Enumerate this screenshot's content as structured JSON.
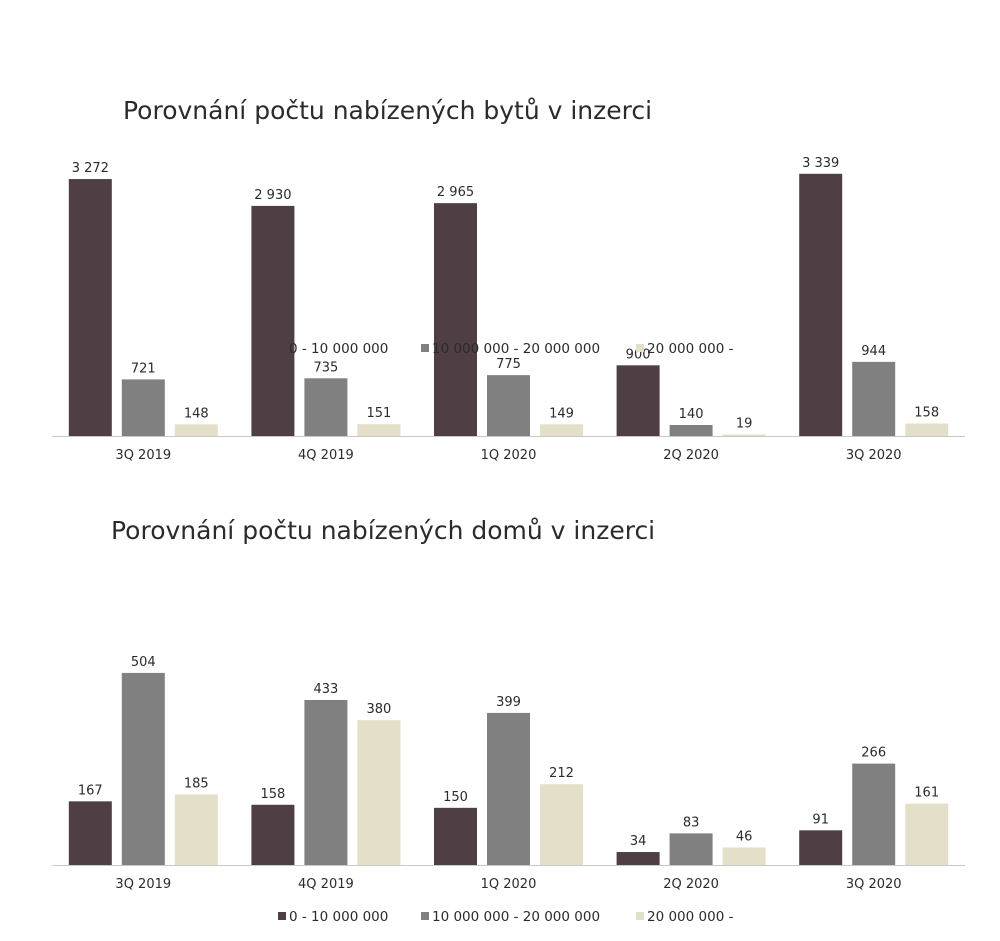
{
  "chart_data": [
    {
      "type": "bar",
      "title": "Porovnání počtu nabízených bytů v inzerci",
      "categories": [
        "3Q 2019",
        "4Q 2019",
        "1Q 2020",
        "2Q 2020",
        "3Q 2020"
      ],
      "series": [
        {
          "name": "0 - 10 000 000",
          "color": "#4f3f45",
          "values": [
            3272,
            2930,
            2965,
            900,
            3339
          ],
          "labels": [
            "3 272",
            "2 930",
            "2 965",
            "900",
            "3 339"
          ]
        },
        {
          "name": "10 000 000 - 20 000 000",
          "color": "#808080",
          "values": [
            721,
            735,
            775,
            140,
            944
          ],
          "labels": [
            "721",
            "735",
            "775",
            "140",
            "944"
          ]
        },
        {
          "name": "20 000 000 -",
          "color": "#e3dfc8",
          "values": [
            148,
            151,
            149,
            19,
            158
          ],
          "labels": [
            "148",
            "151",
            "149",
            "19",
            "158"
          ]
        }
      ],
      "ylim": [
        0,
        3400
      ],
      "legend": "bottom",
      "grid": false
    },
    {
      "type": "bar",
      "title": "Porovnání počtu nabízených domů v inzerci",
      "categories": [
        "3Q 2019",
        "4Q 2019",
        "1Q 2020",
        "2Q 2020",
        "3Q 2020"
      ],
      "series": [
        {
          "name": "0 - 10 000 000",
          "color": "#4f3f45",
          "values": [
            167,
            158,
            150,
            34,
            91
          ],
          "labels": [
            "167",
            "158",
            "150",
            "34",
            "91"
          ]
        },
        {
          "name": "10 000 000 - 20 000 000",
          "color": "#808080",
          "values": [
            504,
            433,
            399,
            83,
            266
          ],
          "labels": [
            "504",
            "433",
            "399",
            "83",
            "266"
          ]
        },
        {
          "name": "20 000 000 -",
          "color": "#e3dfc8",
          "values": [
            185,
            380,
            212,
            46,
            161
          ],
          "labels": [
            "185",
            "380",
            "212",
            "46",
            "161"
          ]
        }
      ],
      "ylim": [
        0,
        530
      ],
      "legend": "bottom",
      "grid": false
    }
  ]
}
